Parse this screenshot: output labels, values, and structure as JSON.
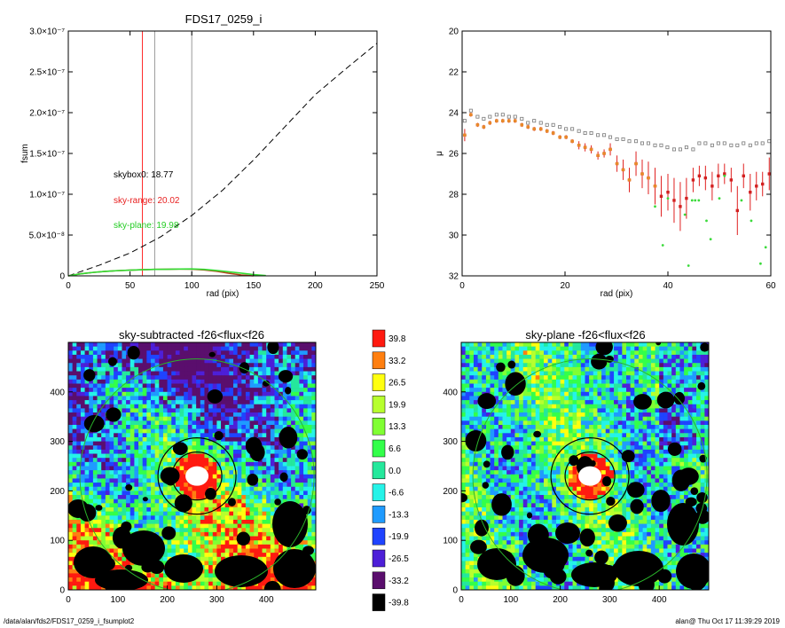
{
  "footer": {
    "path": "/data/alan/fds2/FDS17_0259_i_fsumplot2",
    "user_time": "alan@  Thu Oct 17 11:39:29 2019"
  },
  "colors": {
    "red_line": "#ff2a2a",
    "gray_line": "#9a9a9a",
    "green_line": "#33dd33",
    "brown_curve": "#b3441c",
    "ellipse_green": "#2ab52a"
  },
  "chart_data": [
    {
      "type": "line",
      "title": "FDS17_0259_i",
      "xlabel": "rad (pix)",
      "ylabel": "fsum",
      "xlim": [
        0,
        250
      ],
      "ylim": [
        0,
        3e-07
      ],
      "xticks": [
        "0",
        "50",
        "100",
        "150",
        "200",
        "250"
      ],
      "yticks": [
        "0",
        "5.0×10⁻⁸",
        "1.0×10⁻⁷",
        "1.5×10⁻⁷",
        "2.0×10⁻⁷",
        "2.5×10⁻⁷",
        "3.0×10⁻⁷"
      ],
      "vlines": [
        {
          "x": 60,
          "color": "red"
        },
        {
          "x": 70,
          "color": "gray"
        },
        {
          "x": 100,
          "color": "gray"
        }
      ],
      "annotations": [
        {
          "text": "skybox0: 18.77",
          "color": "black"
        },
        {
          "text": "sky-range: 20.02",
          "color": "red"
        },
        {
          "text": "sky-plane: 19.98",
          "color": "green"
        }
      ],
      "series": [
        {
          "style": "dashed",
          "color": "black",
          "x": [
            0,
            25,
            50,
            75,
            100,
            125,
            150,
            175,
            200,
            225,
            250
          ],
          "y": [
            0,
            1.3e-08,
            2.8e-08,
            4.8e-08,
            7.4e-08,
            1.05e-07,
            1.42e-07,
            1.82e-07,
            2.22e-07,
            2.54e-07,
            2.85e-07
          ]
        },
        {
          "style": "solid",
          "color": "brown",
          "x": [
            0,
            10,
            20,
            30,
            40,
            50,
            60,
            70,
            80,
            90,
            100,
            110,
            120,
            130,
            140,
            150
          ],
          "y": [
            0,
            2.5e-09,
            4.2e-09,
            5.5e-09,
            6.4e-09,
            7e-09,
            7.5e-09,
            7.9e-09,
            8.1e-09,
            8.3e-09,
            8.2e-09,
            7.3e-09,
            5.6e-09,
            3.2e-09,
            1.1e-09,
            0
          ]
        },
        {
          "style": "solid",
          "color": "green",
          "x": [
            0,
            10,
            20,
            30,
            40,
            50,
            60,
            70,
            80,
            90,
            100,
            110,
            120,
            130,
            140,
            150,
            160
          ],
          "y": [
            0,
            2.5e-09,
            4.2e-09,
            5.5e-09,
            6.4e-09,
            7e-09,
            7.5e-09,
            7.9e-09,
            8.1e-09,
            8.4e-09,
            8.5e-09,
            7.9e-09,
            6.6e-09,
            5e-09,
            3.3e-09,
            1.6e-09,
            3e-10
          ]
        }
      ]
    },
    {
      "type": "scatter",
      "title": "",
      "xlabel": "rad (pix)",
      "ylabel": "μ",
      "xlim": [
        0,
        60
      ],
      "ylim": [
        32,
        20
      ],
      "xticks": [
        "0",
        "20",
        "40",
        "60"
      ],
      "yticks": [
        "20",
        "22",
        "24",
        "26",
        "28",
        "30",
        "32"
      ],
      "series": [
        {
          "marker": "open-square",
          "color": "gray",
          "x": [
            0.5,
            1.7,
            3.0,
            4.2,
            5.4,
            6.7,
            7.9,
            9.1,
            10.3,
            11.6,
            12.8,
            14.0,
            15.3,
            16.5,
            17.7,
            19.0,
            20.2,
            21.4,
            22.7,
            23.9,
            25.1,
            26.4,
            27.6,
            28.8,
            30.1,
            31.3,
            32.5,
            33.8,
            35.0,
            36.2,
            37.5,
            38.7,
            39.9,
            41.2,
            42.4,
            43.6,
            44.9,
            46.1,
            47.3,
            48.6,
            49.8,
            51.0,
            52.3,
            53.5,
            54.7,
            56.0,
            57.2,
            58.4,
            59.7
          ],
          "y": [
            24.4,
            23.9,
            24.2,
            24.3,
            24.2,
            24.1,
            24.1,
            24.2,
            24.2,
            24.3,
            24.5,
            24.4,
            24.5,
            24.6,
            24.6,
            24.7,
            24.8,
            24.8,
            24.9,
            25.0,
            25.0,
            25.1,
            25.1,
            25.2,
            25.3,
            25.3,
            25.4,
            25.4,
            25.5,
            25.5,
            25.6,
            25.6,
            25.7,
            25.8,
            25.8,
            25.7,
            25.8,
            25.5,
            25.5,
            25.6,
            25.5,
            25.5,
            25.6,
            25.6,
            25.5,
            25.6,
            25.5,
            25.5,
            25.4
          ]
        },
        {
          "marker": "filled-dot-errorbar",
          "color": "red",
          "x": [
            0.5,
            1.7,
            3.0,
            4.2,
            5.4,
            6.7,
            7.9,
            9.1,
            10.3,
            11.6,
            12.8,
            14.0,
            15.3,
            16.5,
            17.7,
            19.0,
            20.2,
            21.4,
            22.7,
            23.9,
            25.1,
            26.4,
            27.6,
            28.8,
            30.1,
            31.3,
            32.5,
            33.8,
            35.0,
            36.2,
            37.5,
            38.7,
            40.0,
            41.2,
            42.4,
            43.6,
            44.9,
            46.1,
            47.3,
            48.6,
            49.8,
            51.0,
            52.3,
            53.5,
            54.7,
            56.0,
            57.2,
            58.4,
            59.7
          ],
          "y": [
            25.1,
            24.1,
            24.6,
            24.7,
            24.5,
            24.4,
            24.4,
            24.4,
            24.4,
            24.6,
            24.7,
            24.8,
            24.8,
            24.9,
            25.0,
            25.2,
            25.2,
            25.4,
            25.6,
            25.7,
            25.8,
            26.1,
            26.0,
            25.8,
            26.5,
            26.8,
            27.3,
            26.5,
            27.0,
            27.2,
            27.6,
            28.1,
            27.9,
            28.3,
            28.6,
            28.2,
            27.3,
            27.1,
            27.2,
            27.6,
            27.1,
            27.0,
            27.3,
            28.8,
            27.1,
            27.9,
            27.6,
            27.5,
            27.0
          ],
          "err": [
            0.3,
            0.1,
            0.1,
            0.1,
            0.1,
            0.1,
            0.1,
            0.1,
            0.1,
            0.1,
            0.1,
            0.1,
            0.1,
            0.1,
            0.1,
            0.1,
            0.1,
            0.1,
            0.2,
            0.2,
            0.2,
            0.2,
            0.2,
            0.3,
            0.4,
            0.5,
            0.6,
            0.6,
            0.7,
            0.8,
            0.9,
            1.0,
            0.9,
            1.1,
            1.2,
            1.0,
            0.6,
            0.5,
            0.6,
            0.7,
            0.6,
            0.5,
            0.6,
            1.2,
            0.6,
            0.9,
            0.7,
            0.6,
            0.8
          ]
        },
        {
          "marker": "filled-dot",
          "color": "orange",
          "x": [
            0.5,
            1.7,
            3.0,
            4.2,
            5.4,
            6.7,
            7.9,
            9.1,
            10.3,
            11.6,
            12.8,
            14.0,
            15.3,
            16.5,
            17.7,
            19.0,
            20.2,
            21.4,
            22.7,
            23.9,
            25.1,
            26.4,
            27.6,
            28.8,
            30.1,
            31.3,
            32.5,
            33.8,
            35.0,
            36.2,
            37.5
          ],
          "y": [
            25.1,
            24.1,
            24.6,
            24.7,
            24.5,
            24.4,
            24.4,
            24.4,
            24.4,
            24.6,
            24.7,
            24.8,
            24.8,
            24.9,
            25.0,
            25.2,
            25.2,
            25.4,
            25.6,
            25.7,
            25.8,
            26.1,
            26.0,
            25.8,
            26.5,
            26.8,
            27.3,
            26.5,
            27.0,
            27.2,
            27.6
          ]
        },
        {
          "marker": "small-dot",
          "color": "green",
          "x": [
            37.5,
            39.0,
            40.0,
            43.3,
            44.0,
            44.7,
            45.3,
            46.0,
            47.5,
            48.3,
            50.0,
            51.0,
            54.3,
            56.2,
            58.0,
            59.0
          ],
          "y": [
            28.6,
            30.5,
            28.2,
            29.0,
            31.5,
            28.3,
            28.3,
            28.3,
            29.3,
            30.2,
            28.2,
            27.1,
            28.3,
            29.3,
            31.4,
            30.6
          ]
        }
      ]
    },
    {
      "type": "heatmap",
      "title": "sky-subtracted -f26<flux<f26",
      "xlim": [
        0,
        500
      ],
      "ylim": [
        0,
        500
      ],
      "xticks": [
        "0",
        "100",
        "200",
        "300",
        "400"
      ],
      "yticks": [
        "0",
        "100",
        "200",
        "300",
        "400"
      ]
    },
    {
      "type": "heatmap",
      "title": "sky-plane -f26<flux<f26",
      "xlim": [
        0,
        500
      ],
      "ylim": [
        0,
        500
      ],
      "xticks": [
        "0",
        "100",
        "200",
        "300",
        "400"
      ],
      "yticks": [
        "0",
        "100",
        "200",
        "300",
        "400"
      ]
    },
    {
      "type": "colorbar",
      "levels": [
        "39.8",
        "33.2",
        "26.5",
        "19.9",
        "13.3",
        "6.6",
        "0.0",
        "-6.6",
        "-13.3",
        "-19.9",
        "-26.5",
        "-33.2",
        "-39.8"
      ],
      "colors": [
        "#ff1a10",
        "#ff7f10",
        "#ffff10",
        "#b7ff2e",
        "#80ff33",
        "#33ff4a",
        "#25e89c",
        "#25f3e8",
        "#1f9bff",
        "#1f43ff",
        "#4d1fd8",
        "#5a0e6d",
        "#000000"
      ]
    }
  ]
}
